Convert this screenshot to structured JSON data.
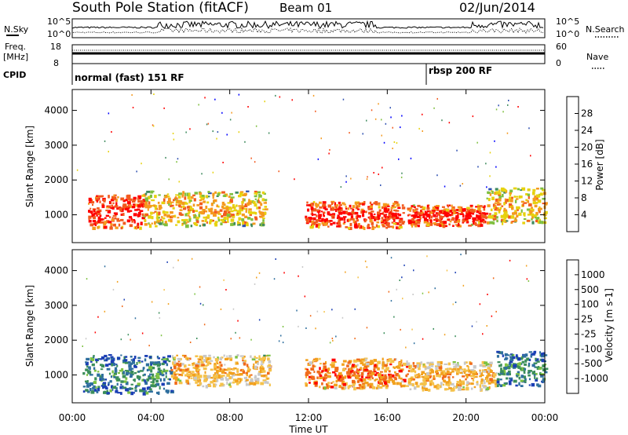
{
  "header": {
    "title": "South Pole Station (fitACF)",
    "beam": "Beam 01",
    "date": "02/Jun/2014"
  },
  "status_panels": {
    "nsky_label": "N.Sky",
    "nsearch_label": "N.Search",
    "scale_top_left": "10^5",
    "scale_bottom_left": "10^0",
    "scale_top_right": "10^5",
    "scale_bottom_right": "10^0",
    "freq_label": "Freq.",
    "freq_unit": "[MHz]",
    "freq_ticks": [
      "18",
      "8"
    ],
    "nave_label": "Nave",
    "nave_ticks": [
      "60",
      "0"
    ],
    "cpid_label": "CPID",
    "cpid_segments": [
      {
        "label": "normal (fast) 151 RF",
        "start_hour": 0
      },
      {
        "label": "rbsp 200 RF",
        "start_hour": 18
      }
    ]
  },
  "colors": {
    "power": [
      "#0000ff",
      "#2e4fb0",
      "#3f8a5e",
      "#7fbf3f",
      "#e6d20f",
      "#f59a1e",
      "#f25a1e",
      "#ff0000"
    ],
    "velocity": [
      "#1b3fb5",
      "#2f6f9e",
      "#3b8e5a",
      "#7dc242",
      "#c8c8c8",
      "#f5c24a",
      "#f2a11e",
      "#f06a1a",
      "#ff0000"
    ]
  },
  "chart_data": [
    {
      "type": "heatmap",
      "panel": "power",
      "xlabel": "",
      "ylabel": "Slant Range [km]",
      "xlim": [
        0,
        24
      ],
      "ylim": [
        200,
        4600
      ],
      "yticks": [
        "1000",
        "2000",
        "3000",
        "4000"
      ],
      "colorbar_label": "Power [dB]",
      "colorbar_ticks": [
        "4",
        "8",
        "12",
        "16",
        "20",
        "24",
        "28"
      ],
      "regions": [
        {
          "x": [
            0.8,
            3.6
          ],
          "y": [
            650,
            1600
          ],
          "level": 7
        },
        {
          "x": [
            3.6,
            9.8
          ],
          "y": [
            700,
            1700
          ],
          "level": 5
        },
        {
          "x": [
            11.8,
            16.8
          ],
          "y": [
            650,
            1400
          ],
          "level": 7
        },
        {
          "x": [
            17.0,
            21.0
          ],
          "y": [
            700,
            1300
          ],
          "level": 7
        },
        {
          "x": [
            21.0,
            24.0
          ],
          "y": [
            800,
            1800
          ],
          "level": 5
        }
      ]
    },
    {
      "type": "heatmap",
      "panel": "velocity",
      "xlabel": "Time UT",
      "ylabel": "Slant Range [km]",
      "xlim": [
        0,
        24
      ],
      "ylim": [
        200,
        4600
      ],
      "xticks": [
        "00:00",
        "04:00",
        "08:00",
        "12:00",
        "16:00",
        "20:00",
        "00:00"
      ],
      "yticks": [
        "1000",
        "2000",
        "3000",
        "4000"
      ],
      "colorbar_label": "Velocity [m s-1]",
      "colorbar_ticks": [
        "1000",
        "500",
        "100",
        "25",
        "-25",
        "-100",
        "-500",
        "-1000"
      ],
      "regions": [
        {
          "x": [
            0.5,
            5.0
          ],
          "y": [
            500,
            1600
          ],
          "level": 2
        },
        {
          "x": [
            5.0,
            10.0
          ],
          "y": [
            700,
            1600
          ],
          "level": 6
        },
        {
          "x": [
            11.8,
            17.0
          ],
          "y": [
            650,
            1500
          ],
          "level": 7
        },
        {
          "x": [
            17.0,
            21.5
          ],
          "y": [
            600,
            1400
          ],
          "level": 6
        },
        {
          "x": [
            21.5,
            24.0
          ],
          "y": [
            700,
            1700
          ],
          "level": 2
        }
      ]
    }
  ]
}
